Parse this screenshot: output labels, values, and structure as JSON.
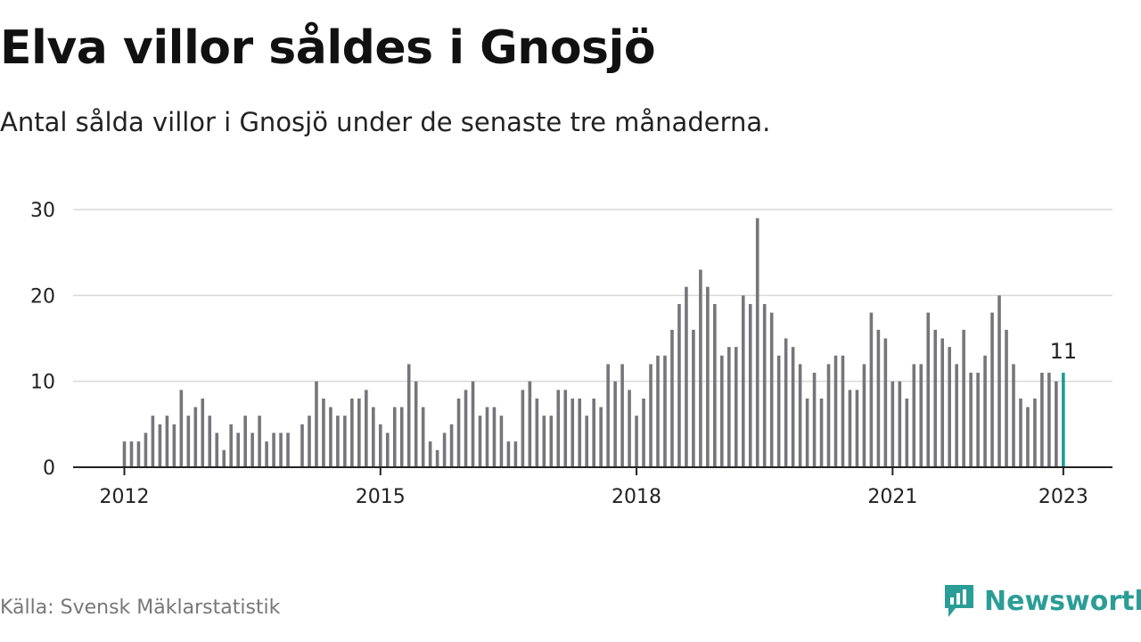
{
  "title": "Elva villor såldes i Gnosjö",
  "subtitle": "Antal sålda villor i Gnosjö under de senaste tre månaderna.",
  "source": "Källa: Svensk Mäklarstatistik",
  "brand": "Newsworthy",
  "colors": {
    "bar": "#76767a",
    "highlight": "#1a9e96",
    "grid": "#d9d9d9",
    "axis": "#222222",
    "brand": "#2a9d96"
  },
  "chart_data": {
    "type": "bar",
    "xlabel": "",
    "ylabel": "",
    "ylim": [
      0,
      30
    ],
    "y_ticks": [
      0,
      10,
      20,
      30
    ],
    "x_ticks": [
      "2012",
      "2015",
      "2018",
      "2021",
      "2023"
    ],
    "grid": true,
    "start_month": "2012-01",
    "end_month": "2023-01",
    "values": [
      3,
      3,
      3,
      4,
      6,
      5,
      6,
      5,
      9,
      6,
      7,
      8,
      6,
      4,
      2,
      5,
      4,
      6,
      4,
      6,
      3,
      4,
      4,
      4,
      null,
      5,
      6,
      10,
      8,
      7,
      6,
      6,
      8,
      8,
      9,
      7,
      5,
      4,
      7,
      7,
      12,
      10,
      7,
      3,
      2,
      4,
      5,
      8,
      9,
      10,
      6,
      7,
      7,
      6,
      3,
      3,
      9,
      10,
      8,
      6,
      6,
      9,
      9,
      8,
      8,
      6,
      8,
      7,
      12,
      10,
      12,
      9,
      6,
      8,
      12,
      13,
      13,
      16,
      19,
      21,
      16,
      23,
      21,
      19,
      13,
      14,
      14,
      20,
      19,
      29,
      19,
      18,
      13,
      15,
      14,
      12,
      8,
      11,
      8,
      12,
      13,
      13,
      9,
      9,
      12,
      18,
      16,
      15,
      10,
      10,
      8,
      12,
      12,
      18,
      16,
      15,
      14,
      12,
      16,
      11,
      11,
      13,
      18,
      20,
      16,
      12,
      8,
      7,
      8,
      11,
      11,
      10,
      11
    ],
    "highlight": {
      "label": "11",
      "value": 11
    }
  }
}
